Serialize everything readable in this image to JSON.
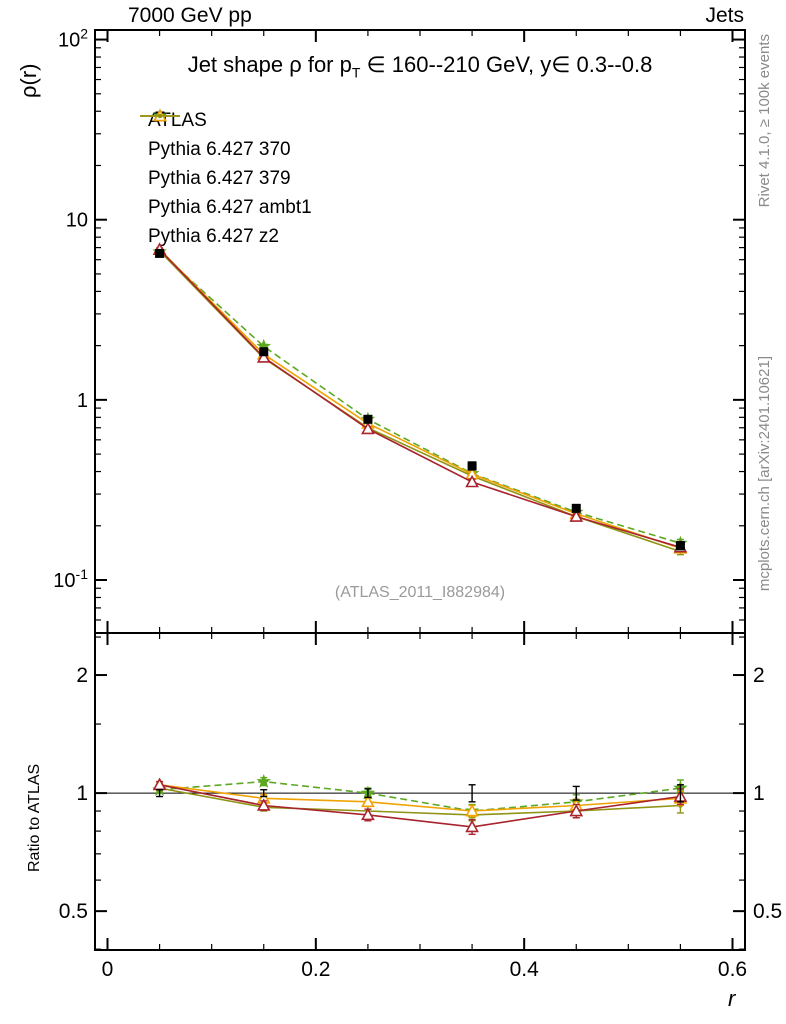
{
  "header": {
    "left": "7000 GeV pp",
    "right": "Jets"
  },
  "side_notes": {
    "top": "Rivet 4.1.0, ≥ 100k events",
    "bottom": "mcplots.cern.ch [arXiv:2401.10621]"
  },
  "labels": {
    "title_pre": "Jet shape ρ for p",
    "title_sub": "T",
    "title_post": " ∈ 160--210 GeV, y∈ 0.3--0.8",
    "watermark": "(ATLAS_2011_I882984)",
    "ylabel_top": "ρ(r)",
    "ylabel_bottom": "Ratio to ATLAS",
    "xlabel": "r"
  },
  "chart_data": {
    "type": "line",
    "x": [
      0.05,
      0.15,
      0.25,
      0.35,
      0.45,
      0.55
    ],
    "xlim": [
      -0.012,
      0.612
    ],
    "x_major_ticks": [
      0,
      0.2,
      0.4,
      0.6
    ],
    "x_major_tick_labels": [
      "0",
      "0.2",
      "0.4",
      "0.6"
    ],
    "x_minor_step": 0.05,
    "top_panel": {
      "scale": "log",
      "ylim": [
        0.0508,
        113
      ],
      "major_ticks": [
        0.1,
        1,
        10,
        100
      ],
      "tick_labels": [
        "10^{-1}",
        "1",
        "10",
        "10^{2}"
      ]
    },
    "ratio_panel": {
      "scale": "log",
      "ylim": [
        0.398,
        2.56
      ],
      "major_ticks": [
        0.5,
        1,
        2
      ],
      "tick_labels": [
        "0.5",
        "1",
        "2"
      ],
      "minor_ticks": [
        0.4,
        0.6,
        0.7,
        0.8,
        0.9,
        1.5,
        2.5
      ],
      "reference_line": 1
    },
    "series": [
      {
        "name": "ATLAS",
        "role": "data",
        "color": "#000000",
        "marker": "square",
        "line": "none",
        "values": [
          6.5,
          1.85,
          0.78,
          0.43,
          0.25,
          0.155
        ],
        "ratio": [
          1,
          1,
          1,
          1,
          1,
          1
        ],
        "ratio_err": [
          0.02,
          0.02,
          0.025,
          0.05,
          0.04,
          0.05
        ]
      },
      {
        "name": "Pythia 6.427 370",
        "role": "mc",
        "color": "#a8232d",
        "marker": "triangle-open",
        "line": "solid",
        "values": [
          6.83,
          1.72,
          0.69,
          0.35,
          0.225,
          0.152
        ],
        "ratio": [
          1.05,
          0.93,
          0.88,
          0.82,
          0.9,
          0.98
        ],
        "ratio_err": [
          0.02,
          0.025,
          0.03,
          0.035,
          0.035,
          0.045
        ]
      },
      {
        "name": "Pythia 6.427 379",
        "role": "mc",
        "color": "#5da821",
        "marker": "star",
        "line": "dash",
        "values": [
          6.63,
          1.98,
          0.78,
          0.39,
          0.238,
          0.16
        ],
        "ratio": [
          1.02,
          1.07,
          1.0,
          0.9,
          0.95,
          1.03
        ],
        "ratio_err": [
          0.02,
          0.025,
          0.03,
          0.035,
          0.04,
          0.05
        ]
      },
      {
        "name": "Pythia 6.427 ambt1",
        "role": "mc",
        "color": "#f0a202",
        "marker": "triangle-open",
        "line": "solid",
        "values": [
          6.83,
          1.79,
          0.74,
          0.387,
          0.233,
          0.15
        ],
        "ratio": [
          1.05,
          0.97,
          0.95,
          0.9,
          0.93,
          0.97
        ],
        "ratio_err": [
          0.015,
          0.02,
          0.025,
          0.03,
          0.035,
          0.04
        ]
      },
      {
        "name": "Pythia 6.427 z2",
        "role": "mc",
        "color": "#8f9415",
        "marker": "dot",
        "line": "solid",
        "values": [
          6.7,
          1.7,
          0.7,
          0.378,
          0.225,
          0.144
        ],
        "ratio": [
          1.03,
          0.92,
          0.9,
          0.88,
          0.9,
          0.93
        ],
        "ratio_err": [
          0.015,
          0.02,
          0.025,
          0.03,
          0.035,
          0.04
        ]
      }
    ]
  }
}
